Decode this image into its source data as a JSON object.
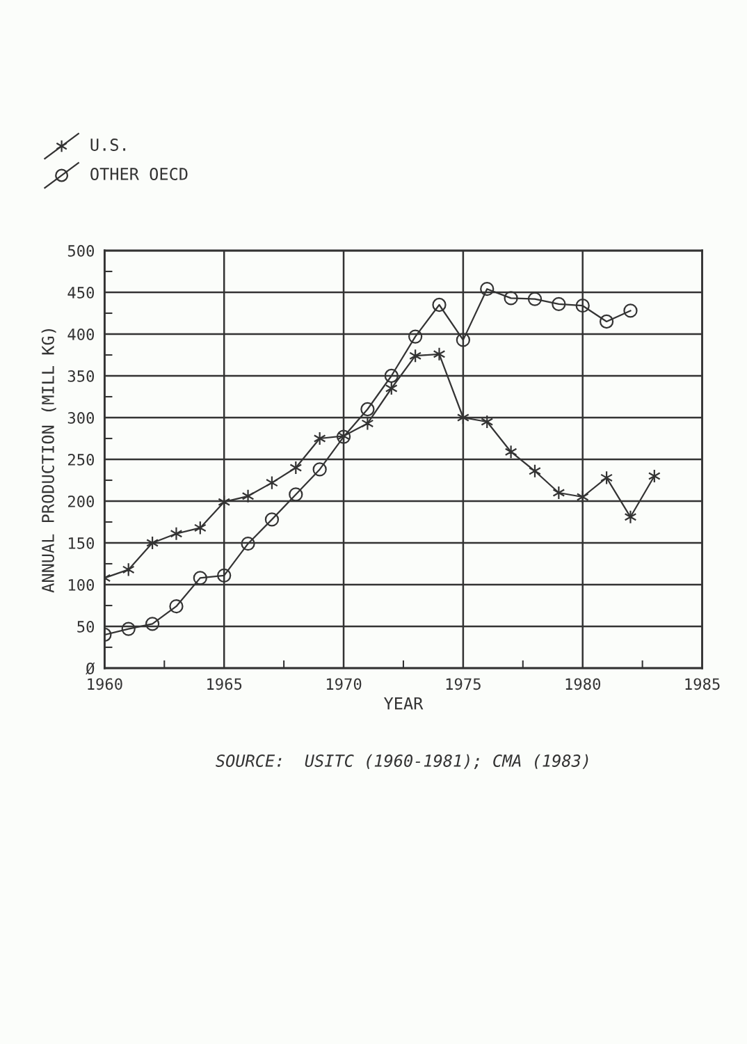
{
  "chart_data": {
    "type": "line",
    "xlabel": "YEAR",
    "ylabel": "ANNUAL PRODUCTION (MILL KG)",
    "x": [
      1960,
      1961,
      1962,
      1963,
      1964,
      1965,
      1966,
      1967,
      1968,
      1969,
      1970,
      1971,
      1972,
      1973,
      1974,
      1975,
      1976,
      1977,
      1978,
      1979,
      1980,
      1981,
      1982,
      1983
    ],
    "series": [
      {
        "name": "U.S.",
        "color": "#333333",
        "marker": "cross",
        "values": [
          108,
          118,
          150,
          161,
          168,
          199,
          206,
          222,
          240,
          275,
          278,
          293,
          335,
          374,
          376,
          300,
          295,
          259,
          236,
          210,
          205,
          228,
          181,
          230
        ]
      },
      {
        "name": "OTHER OECD",
        "color": "#333333",
        "marker": "circle",
        "values": [
          40,
          47,
          53,
          74,
          108,
          111,
          149,
          178,
          208,
          238,
          277,
          310,
          350,
          397,
          435,
          393,
          454,
          443,
          442,
          436,
          434,
          415,
          428,
          null
        ]
      }
    ],
    "xlim": [
      1960,
      1985
    ],
    "xticks": [
      1960,
      {
        "value": 1962.5,
        "label": null
      },
      1965,
      {
        "value": 1967.5,
        "label": null
      },
      1970,
      {
        "value": 1972.5,
        "label": null
      },
      1975,
      {
        "value": 1977.5,
        "label": null
      },
      1980,
      {
        "value": 1982.5,
        "label": null
      },
      1985
    ],
    "ylim": [
      0,
      500
    ],
    "yticks": [
      {
        "value": 0,
        "label": "Ø"
      },
      {
        "value": 25,
        "label": null
      },
      50,
      {
        "value": 75,
        "label": null
      },
      100,
      {
        "value": 125,
        "label": null
      },
      150,
      {
        "value": 175,
        "label": null
      },
      200,
      {
        "value": 225,
        "label": null
      },
      250,
      {
        "value": 275,
        "label": null
      },
      300,
      {
        "value": 325,
        "label": null
      },
      350,
      {
        "value": 375,
        "label": null
      },
      400,
      {
        "value": 425,
        "label": null
      },
      450,
      {
        "value": 475,
        "label": null
      },
      500
    ],
    "grid": true,
    "legend": "top left",
    "line_style": "solid",
    "annotations": [
      "SOURCE:  USITC (1960-1981); CMA (1983)"
    ]
  }
}
